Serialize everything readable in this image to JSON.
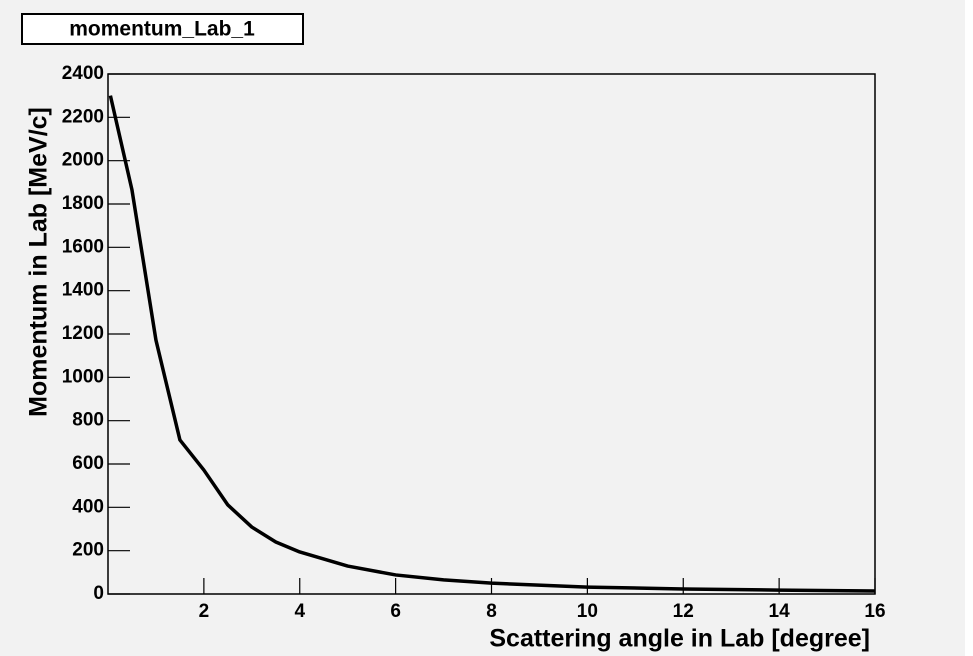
{
  "chart_data": {
    "type": "line",
    "title": "momentum_Lab_1",
    "x_label": "Scattering angle in Lab [degree]",
    "y_label": "Momentum in Lab [MeV/c]",
    "x": [
      0.05,
      0.5,
      1.0,
      1.5,
      2.0,
      2.5,
      3.0,
      3.5,
      4.0,
      5.0,
      6.0,
      7.0,
      8.0,
      10.0,
      12.0,
      14.0,
      16.0
    ],
    "series": [
      {
        "color": "#000000",
        "values": [
          2300,
          1865,
          1172,
          711,
          572,
          411,
          309,
          240,
          194,
          129,
          88,
          65,
          50,
          32,
          23,
          18,
          14
        ]
      }
    ],
    "xlim": [
      0,
      16
    ],
    "xticks": [
      2,
      4,
      6,
      8,
      10,
      12,
      14,
      16
    ],
    "ylim": [
      0,
      2400
    ],
    "yticks": [
      0,
      200,
      400,
      600,
      800,
      1000,
      1200,
      1400,
      1600,
      1800,
      2000,
      2200,
      2400
    ]
  }
}
